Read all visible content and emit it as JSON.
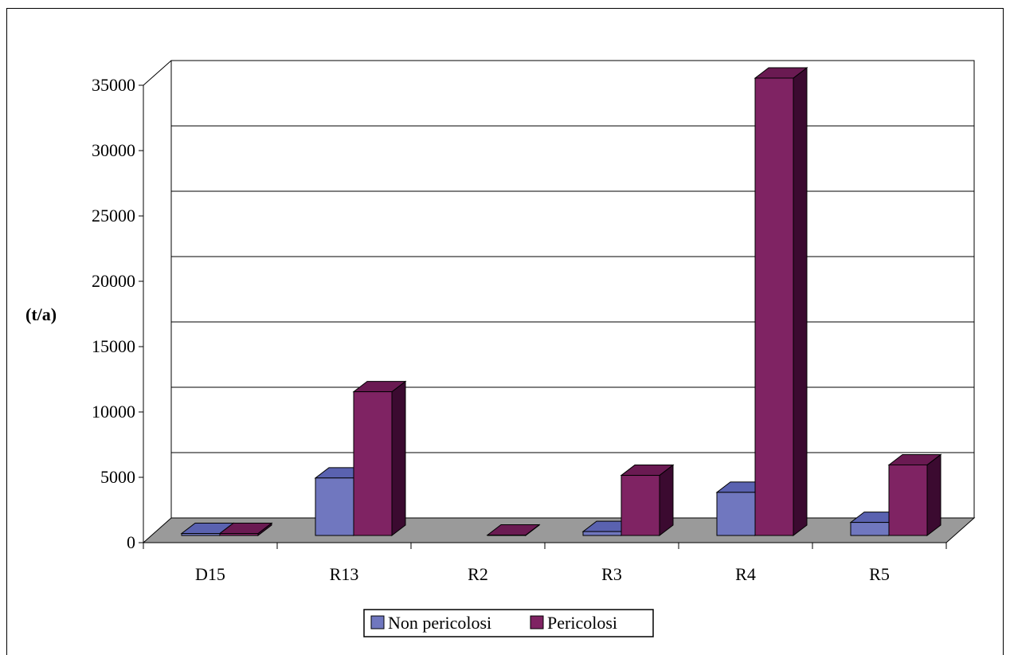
{
  "chart_data": {
    "type": "bar",
    "title": "",
    "xlabel": "",
    "ylabel": "(t/a)",
    "ylim": [
      0,
      35000
    ],
    "y_ticks": [
      "0",
      "5000",
      "10000",
      "15000",
      "20000",
      "25000",
      "30000",
      "35000"
    ],
    "categories": [
      "D15",
      "R13",
      "R2",
      "R3",
      "R4",
      "R5"
    ],
    "series": [
      {
        "name": "Non pericolosi",
        "values": [
          150,
          4400,
          0,
          300,
          3300,
          1000
        ]
      },
      {
        "name": "Pericolosi",
        "values": [
          150,
          11000,
          30,
          4600,
          35000,
          5400
        ]
      }
    ],
    "grid": true,
    "legend_position": "bottom",
    "colors": {
      "non_pericolosi": "#7077bf",
      "non_pericolosi_top": "#5a62b0",
      "non_pericolosi_side": "#3a3f80",
      "pericolosi": "#7f2363",
      "pericolosi_top": "#6a1a52",
      "pericolosi_side": "#3b0a30",
      "floor": "#9a9a9a",
      "grid": "#000000"
    }
  }
}
